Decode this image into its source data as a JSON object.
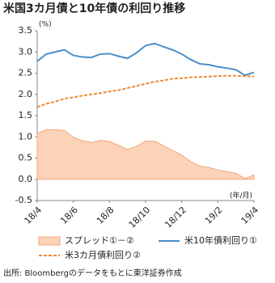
{
  "chart_data": {
    "type": "line",
    "title": "米国3カ月債と10年債の利回り推移",
    "y_label": "(%)",
    "x_label": "(年/月)",
    "source": "出所: Bloombergのデータをもとに東洋証券作成",
    "categories": [
      "18/4",
      null,
      null,
      null,
      "18/6",
      null,
      null,
      null,
      "18/8",
      null,
      null,
      null,
      "18/10",
      null,
      null,
      null,
      "18/12",
      null,
      null,
      null,
      "19/2",
      null,
      null,
      null,
      "19/4"
    ],
    "ylim": [
      -0.5,
      3.5
    ],
    "yticks": [
      3.5,
      {
        "value": 3.0,
        "label": "3.0"
      },
      2.5,
      {
        "value": 2.0,
        "label": "2.0"
      },
      1.5,
      {
        "value": 1.0,
        "label": "1.0"
      },
      0.5,
      {
        "value": 0.0,
        "label": "0.0"
      },
      -0.5
    ],
    "grid": false,
    "series": [
      {
        "name": "スプレッド①－②",
        "kind": "area",
        "color": "#f4a77a",
        "fill": "#fbd3b8",
        "values": [
          1.08,
          1.17,
          1.17,
          1.15,
          0.99,
          0.91,
          0.87,
          0.92,
          0.89,
          0.8,
          0.7,
          0.78,
          0.9,
          0.9,
          0.79,
          0.68,
          0.57,
          0.42,
          0.31,
          0.28,
          0.22,
          0.18,
          0.14,
          0.02,
          0.1
        ]
      },
      {
        "name": "米10年債利回り①",
        "kind": "line",
        "color": "#4a8fcb",
        "values": [
          2.78,
          2.95,
          3.0,
          3.05,
          2.92,
          2.88,
          2.87,
          2.95,
          2.96,
          2.9,
          2.85,
          2.98,
          3.15,
          3.2,
          3.12,
          3.05,
          2.95,
          2.82,
          2.72,
          2.7,
          2.65,
          2.62,
          2.58,
          2.45,
          2.52
        ]
      },
      {
        "name": "米3カ月債利回り②",
        "kind": "dashed",
        "color": "#ee8a32",
        "values": [
          1.7,
          1.78,
          1.83,
          1.9,
          1.93,
          1.97,
          2.0,
          2.03,
          2.07,
          2.1,
          2.15,
          2.2,
          2.25,
          2.3,
          2.33,
          2.37,
          2.38,
          2.4,
          2.41,
          2.42,
          2.43,
          2.44,
          2.44,
          2.43,
          2.42
        ]
      }
    ]
  }
}
